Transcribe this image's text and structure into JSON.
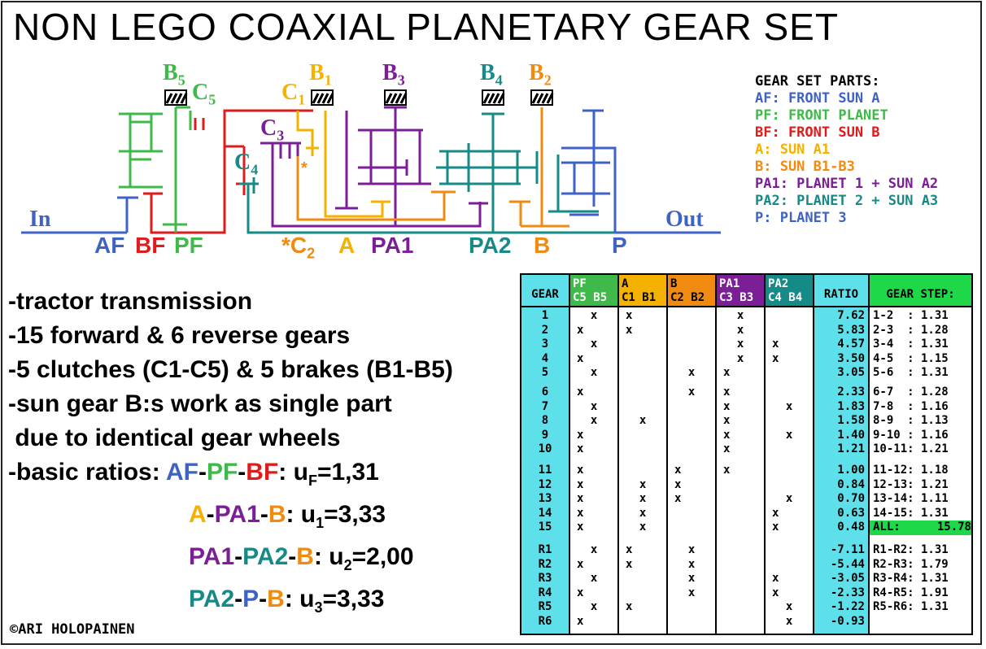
{
  "title": "NON LEGO COAXIAL PLANETARY GEAR SET",
  "colors": {
    "blue": "#3f63c4",
    "green": "#3fb94a",
    "red": "#e01b1b",
    "yellow": "#f5b100",
    "orange": "#f08a10",
    "purple": "#7c1e96",
    "teal": "#168a86",
    "cyan": "#5ee0ea",
    "lime": "#1fd84a"
  },
  "diagram": {
    "in": "In",
    "out": "Out",
    "bottom_labels": {
      "af": "AF",
      "bf": "BF",
      "pf": "PF",
      "c2": "*C",
      "c2_sub": "2",
      "a": "A",
      "pa1": "PA1",
      "pa2": "PA2",
      "b": "B",
      "p": "P"
    },
    "top_labels": {
      "b5": "B",
      "b5_sub": "5",
      "c5": "C",
      "c5_sub": "5",
      "c1": "C",
      "c1_sub": "1",
      "b1": "B",
      "b1_sub": "1",
      "b3": "B",
      "b3_sub": "3",
      "b4": "B",
      "b4_sub": "4",
      "b2": "B",
      "b2_sub": "2",
      "c3": "C",
      "c3_sub": "3",
      "c4": "C",
      "c4_sub": "4",
      "star": "*"
    }
  },
  "parts": {
    "heading": "GEAR SET PARTS:",
    "items": [
      {
        "text": "AF: FRONT SUN A",
        "color": "#3f63c4"
      },
      {
        "text": "PF: FRONT PLANET",
        "color": "#3fb94a"
      },
      {
        "text": "BF: FRONT SUN B",
        "color": "#e01b1b"
      },
      {
        "text": "A: SUN A1",
        "color": "#f5b100"
      },
      {
        "text": "B: SUN B1-B3",
        "color": "#f08a10"
      },
      {
        "text": "PA1: PLANET 1 + SUN A2",
        "color": "#7c1e96"
      },
      {
        "text": "PA2: PLANET 2 + SUN A3",
        "color": "#168a86"
      },
      {
        "text": "P: PLANET 3",
        "color": "#3f63c4"
      }
    ]
  },
  "bullets": [
    "-tractor transmission",
    "-15 forward & 6 reverse gears",
    "-5 clutches (C1-C5) & 5 brakes (B1-B5)",
    "-sun gear B:s work as single part",
    " due to identical gear wheels"
  ],
  "ratios": {
    "prefix": "-basic ratios:",
    "lines": [
      {
        "parts": [
          [
            "AF",
            "#3f63c4"
          ],
          [
            "-",
            "#000"
          ],
          [
            "PF",
            "#3fb94a"
          ],
          [
            "-",
            "#000"
          ],
          [
            "BF",
            "#e01b1b"
          ]
        ],
        "u": "u",
        "sub": "F",
        "val": "=1,31"
      },
      {
        "parts": [
          [
            "A",
            "#f5b100"
          ],
          [
            "-",
            "#000"
          ],
          [
            "PA1",
            "#7c1e96"
          ],
          [
            "-",
            "#000"
          ],
          [
            "B",
            "#f08a10"
          ]
        ],
        "u": "u",
        "sub": "1",
        "val": "=3,33"
      },
      {
        "parts": [
          [
            "PA1",
            "#7c1e96"
          ],
          [
            "-",
            "#000"
          ],
          [
            "PA2",
            "#168a86"
          ],
          [
            "-",
            "#000"
          ],
          [
            "B",
            "#f08a10"
          ]
        ],
        "u": "u",
        "sub": "2",
        "val": "=2,00"
      },
      {
        "parts": [
          [
            "PA2",
            "#168a86"
          ],
          [
            "-",
            "#000"
          ],
          [
            "P",
            "#3f63c4"
          ],
          [
            "-",
            "#000"
          ],
          [
            "B",
            "#f08a10"
          ]
        ],
        "u": "u",
        "sub": "3",
        "val": "=3,33"
      }
    ]
  },
  "copyright": "©ARI HOLOPAINEN",
  "table": {
    "headers": {
      "gear": "GEAR",
      "pf": [
        "PF",
        "C5 B5"
      ],
      "a": [
        "A",
        "C1 B1"
      ],
      "b": [
        "B",
        "C2 B2"
      ],
      "pa1": [
        "PA1",
        "C3 B3"
      ],
      "pa2": [
        "PA2",
        "C4 B4"
      ],
      "ratio": "RATIO",
      "step": "GEAR STEP:"
    },
    "groups": [
      {
        "gears": [
          "1",
          "2",
          "3",
          "4",
          "5"
        ],
        "pf": [
          " x",
          " ",
          "",
          " x",
          " "
        ],
        "pf_b": [
          "x",
          " ",
          "x",
          "",
          "x"
        ],
        "ratio": [
          "7.62",
          "5.83",
          "4.57",
          "3.50",
          "3.05"
        ],
        "step": [
          "1-2  : 1.31",
          "2-3  : 1.28",
          "3-4  : 1.31",
          "4-5  : 1.15",
          "5-6  : 1.31"
        ]
      },
      {
        "gears": [
          "6",
          "7",
          "8",
          "9",
          "10"
        ],
        "ratio": [
          "2.33",
          "1.83",
          "1.58",
          "1.40",
          "1.21"
        ],
        "step": [
          "6-7  : 1.28",
          "7-8  : 1.16",
          "8-9  : 1.13",
          "9-10 : 1.16",
          "10-11: 1.21"
        ]
      },
      {
        "gears": [
          "11",
          "12",
          "13",
          "14",
          "15"
        ],
        "ratio": [
          "1.00",
          "0.84",
          "0.70",
          "0.63",
          "0.48"
        ],
        "step": [
          "11-12: 1.18",
          "12-13: 1.21",
          "13-14: 1.11",
          "14-15: 1.31"
        ],
        "all_label": "ALL:",
        "all_value": "15.78"
      },
      {
        "gears": [
          "R1",
          "R2",
          "R3",
          "R4",
          "R5",
          "R6"
        ],
        "ratio": [
          "-7.11",
          "-5.44",
          "-3.05",
          "-2.33",
          "-1.22",
          "-0.93"
        ],
        "step": [
          "R1-R2: 1.31",
          "R2-R3: 1.79",
          "R3-R4: 1.31",
          "R4-R5: 1.91",
          "R5-R6: 1.31"
        ]
      }
    ],
    "marks": {
      "pf": [
        [
          "  x",
          "x  ",
          "  x",
          "x  ",
          "  x"
        ],
        [
          "x  ",
          "  x",
          "  x",
          "x  ",
          "x  "
        ],
        [
          "x  ",
          "x  ",
          "x  ",
          "x  ",
          "x  "
        ],
        [
          "  x",
          "x  ",
          "  x",
          "x  ",
          "  x",
          "x  "
        ]
      ],
      "a": [
        [
          "x  ",
          "x  ",
          "",
          "",
          ""
        ],
        [
          "",
          "",
          "  x",
          "",
          ""
        ],
        [
          "",
          "  x",
          "  x",
          "  x",
          "  x"
        ],
        [
          "x  ",
          "x  ",
          "",
          "",
          "x  ",
          ""
        ]
      ],
      "b": [
        [
          "",
          "",
          "",
          "",
          "  x"
        ],
        [
          "  x",
          "",
          "",
          "",
          ""
        ],
        [
          "x  ",
          "x  ",
          "x  ",
          "",
          ""
        ],
        [
          "  x",
          "  x",
          "  x",
          "  x",
          "",
          ""
        ]
      ],
      "pa1": [
        [
          "  x",
          "  x",
          "  x",
          "  x",
          "x  "
        ],
        [
          "x  ",
          "x  ",
          "x  ",
          "x  ",
          "x  "
        ],
        [
          "x  ",
          "",
          "",
          "",
          ""
        ],
        [
          "",
          "",
          "",
          "",
          "",
          ""
        ]
      ],
      "pa2": [
        [
          "",
          "",
          "x  ",
          "x  ",
          ""
        ],
        [
          "",
          "  x",
          "",
          "  x",
          ""
        ],
        [
          "",
          "",
          "  x",
          "x  ",
          "x  "
        ],
        [
          "",
          "",
          "x  ",
          "x  ",
          "  x",
          "  x"
        ]
      ]
    }
  }
}
